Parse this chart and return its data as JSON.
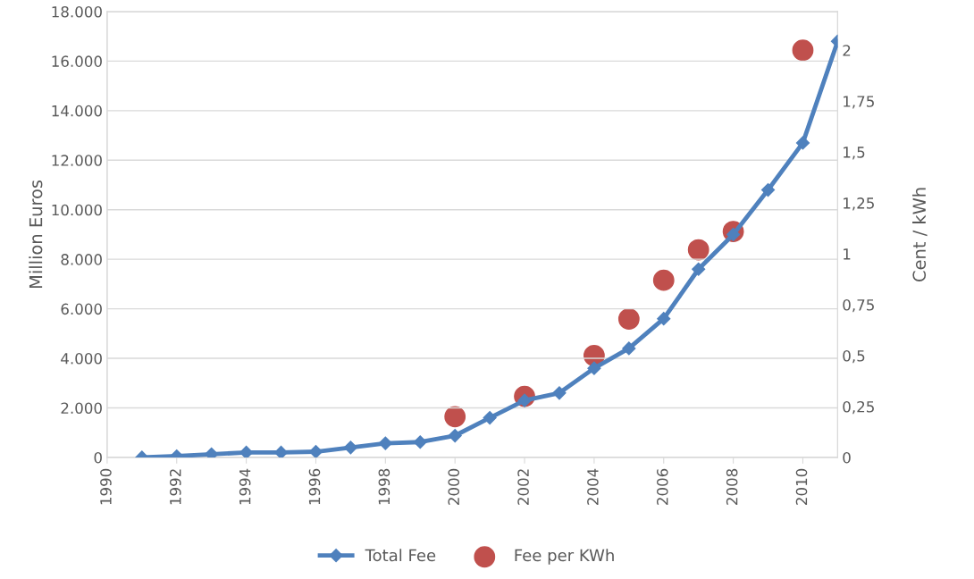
{
  "chart_data": {
    "type": "line",
    "ylabel": "Million Euros",
    "y2label": "Cent / kWh",
    "x": [
      1991,
      1992,
      1993,
      1994,
      1995,
      1996,
      1997,
      1998,
      1999,
      2000,
      2001,
      2002,
      2003,
      2004,
      2005,
      2006,
      2007,
      2008,
      2009,
      2010,
      2011
    ],
    "series": [
      {
        "name": "Total Fee",
        "color": "#4f81bd",
        "marker": "diamond",
        "values": [
          0,
          50,
          130,
          200,
          200,
          230,
          400,
          570,
          620,
          880,
          1600,
          2300,
          2600,
          3600,
          4400,
          5600,
          7600,
          9000,
          10800,
          12700,
          16800
        ]
      },
      {
        "name": "Fee per KWh",
        "type": "scatter",
        "axis": "y2",
        "color": "#c0504d",
        "marker": "circle",
        "x": [
          2000,
          2002,
          2004,
          2005,
          2006,
          2007,
          2008,
          2010
        ],
        "values": [
          0.2,
          0.3,
          0.5,
          0.68,
          0.87,
          1.02,
          1.11,
          2.0
        ]
      }
    ],
    "xlim": [
      1990,
      2011
    ],
    "xticks": [
      1990,
      1992,
      1994,
      1996,
      1998,
      2000,
      2002,
      2004,
      2006,
      2008,
      2010
    ],
    "ylim": [
      0,
      18000
    ],
    "yticks": [
      {
        "value": 0,
        "label": "0"
      },
      {
        "value": 2000,
        "label": "2.000"
      },
      {
        "value": 4000,
        "label": "4.000"
      },
      {
        "value": 6000,
        "label": "6.000"
      },
      {
        "value": 8000,
        "label": "8.000"
      },
      {
        "value": 10000,
        "label": "10.000"
      },
      {
        "value": 12000,
        "label": "12.000"
      },
      {
        "value": 14000,
        "label": "14.000"
      },
      {
        "value": 16000,
        "label": "16.000"
      },
      {
        "value": 18000,
        "label": "18.000"
      }
    ],
    "y2lim": [
      0,
      2.19
    ],
    "y2ticks": [
      {
        "value": 0,
        "label": "0"
      },
      {
        "value": 0.25,
        "label": "0,25"
      },
      {
        "value": 0.5,
        "label": "0,5"
      },
      {
        "value": 0.75,
        "label": "0,75"
      },
      {
        "value": 1,
        "label": "1"
      },
      {
        "value": 1.25,
        "label": "1,25"
      },
      {
        "value": 1.5,
        "label": "1,5"
      },
      {
        "value": 1.75,
        "label": "1,75"
      },
      {
        "value": 2,
        "label": "2"
      }
    ],
    "grid": "y",
    "legend": "bottom"
  }
}
